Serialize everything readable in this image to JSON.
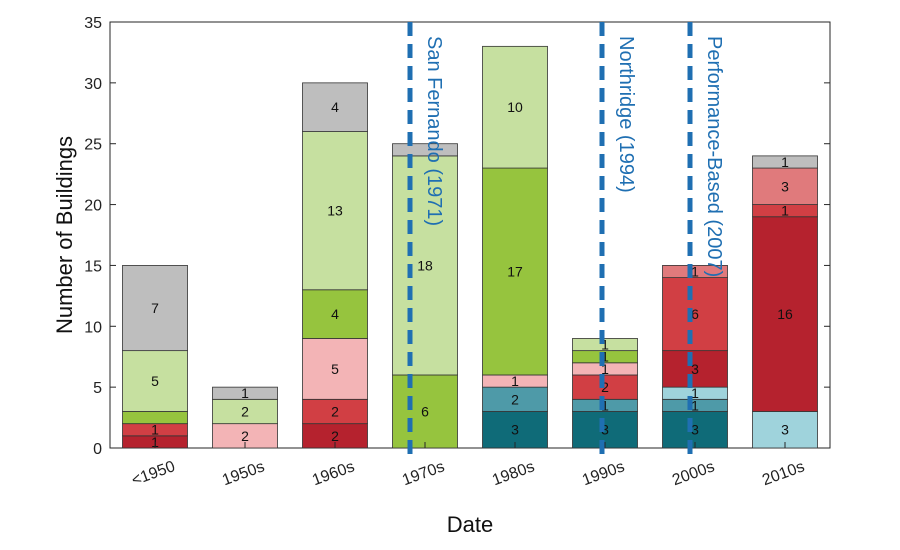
{
  "chart_data": {
    "type": "bar",
    "stacked": true,
    "title": "",
    "xlabel": "Date",
    "ylabel": "Number of Buildings",
    "ylim": [
      0,
      35
    ],
    "yticks": [
      0,
      5,
      10,
      15,
      20,
      25,
      30,
      35
    ],
    "grid": false,
    "categories": [
      "<1950",
      "1950s",
      "1960s",
      "1970s",
      "1980s",
      "1990s",
      "2000s",
      "2010s"
    ],
    "bars": [
      {
        "category": "<1950",
        "segments": [
          {
            "value": 1,
            "color": "#b5222e",
            "label": "1"
          },
          {
            "value": 1,
            "color": "#d13f44",
            "label": "1"
          },
          {
            "value": 1,
            "color": "#96c43e",
            "label": ""
          },
          {
            "value": 5,
            "color": "#c6e0a0",
            "label": "5"
          },
          {
            "value": 7,
            "color": "#bebebe",
            "label": "7"
          }
        ]
      },
      {
        "category": "1950s",
        "segments": [
          {
            "value": 2,
            "color": "#f3b4b6",
            "label": "2"
          },
          {
            "value": 2,
            "color": "#c6e0a0",
            "label": "2"
          },
          {
            "value": 1,
            "color": "#bebebe",
            "label": "1"
          }
        ]
      },
      {
        "category": "1960s",
        "segments": [
          {
            "value": 2,
            "color": "#b5222e",
            "label": "2"
          },
          {
            "value": 2,
            "color": "#d13f44",
            "label": "2"
          },
          {
            "value": 5,
            "color": "#f3b4b6",
            "label": "5"
          },
          {
            "value": 4,
            "color": "#96c43e",
            "label": "4"
          },
          {
            "value": 13,
            "color": "#c6e0a0",
            "label": "13"
          },
          {
            "value": 4,
            "color": "#bebebe",
            "label": "4"
          }
        ]
      },
      {
        "category": "1970s",
        "segments": [
          {
            "value": 6,
            "color": "#96c43e",
            "label": "6"
          },
          {
            "value": 18,
            "color": "#c6e0a0",
            "label": "18"
          },
          {
            "value": 1,
            "color": "#bebebe",
            "label": ""
          }
        ]
      },
      {
        "category": "1980s",
        "segments": [
          {
            "value": 3,
            "color": "#0f6b78",
            "label": "3"
          },
          {
            "value": 2,
            "color": "#4e9aa8",
            "label": "2"
          },
          {
            "value": 1,
            "color": "#f3b4b6",
            "label": "1"
          },
          {
            "value": 17,
            "color": "#96c43e",
            "label": "17"
          },
          {
            "value": 10,
            "color": "#c6e0a0",
            "label": "10"
          }
        ]
      },
      {
        "category": "1990s",
        "segments": [
          {
            "value": 3,
            "color": "#0f6b78",
            "label": "3"
          },
          {
            "value": 1,
            "color": "#4e9aa8",
            "label": "1"
          },
          {
            "value": 2,
            "color": "#d13f44",
            "label": "2"
          },
          {
            "value": 1,
            "color": "#f3b4b6",
            "label": "1"
          },
          {
            "value": 1,
            "color": "#96c43e",
            "label": "1"
          },
          {
            "value": 1,
            "color": "#c6e0a0",
            "label": "1"
          }
        ]
      },
      {
        "category": "2000s",
        "segments": [
          {
            "value": 3,
            "color": "#0f6b78",
            "label": "3"
          },
          {
            "value": 1,
            "color": "#4e9aa8",
            "label": "1"
          },
          {
            "value": 1,
            "color": "#9fd3dc",
            "label": "1"
          },
          {
            "value": 3,
            "color": "#b5222e",
            "label": "3"
          },
          {
            "value": 6,
            "color": "#d13f44",
            "label": "6"
          },
          {
            "value": 1,
            "color": "#e07a7c",
            "label": "1"
          }
        ]
      },
      {
        "category": "2010s",
        "segments": [
          {
            "value": 3,
            "color": "#9fd3dc",
            "label": "3"
          },
          {
            "value": 16,
            "color": "#b5222e",
            "label": "16"
          },
          {
            "value": 1,
            "color": "#d13f44",
            "label": "1"
          },
          {
            "value": 3,
            "color": "#e07a7c",
            "label": "3"
          },
          {
            "value": 1,
            "color": "#bebebe",
            "label": "1"
          }
        ]
      }
    ],
    "events": [
      {
        "label": "San Fernando (1971)",
        "x_position": "between 1970s and 1980s"
      },
      {
        "label": "Northridge (1994)",
        "x_position": "between 1990s and 2000s"
      },
      {
        "label": "Performance-Based (2007)",
        "x_position": "between 2000s and 2010s"
      }
    ],
    "event_line_color": "#1f6fb2"
  }
}
